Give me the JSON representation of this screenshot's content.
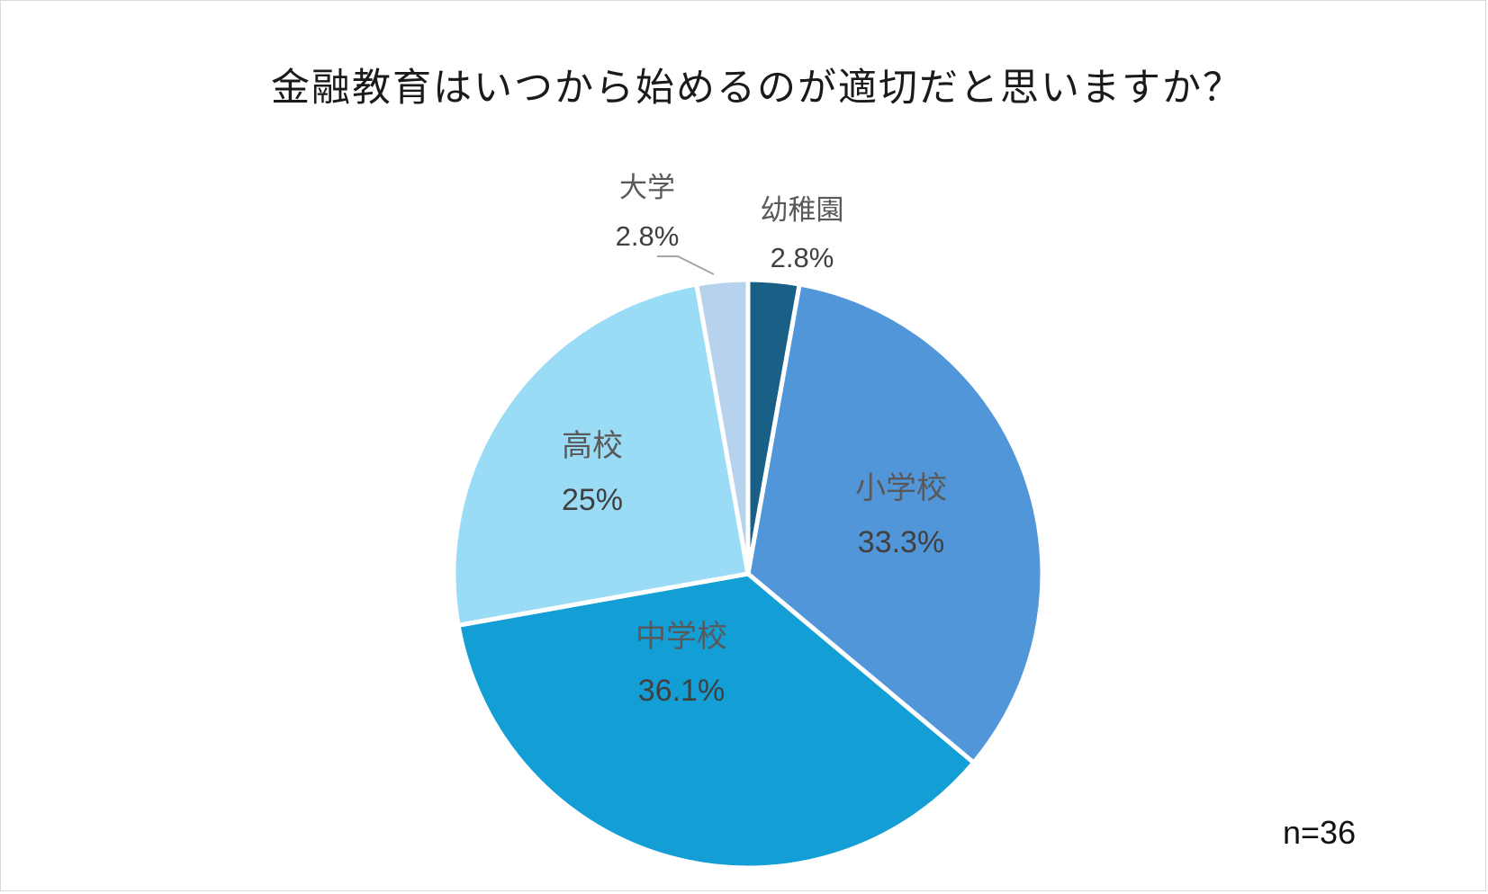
{
  "chart_data": {
    "type": "pie",
    "title": "金融教育はいつから始めるのが適切だと思いますか？",
    "note": "n=36",
    "slices": [
      {
        "label": "幼稚園",
        "value": 2.8,
        "value_label": "2.8%",
        "color": "#1a5f85"
      },
      {
        "label": "小学校",
        "value": 33.3,
        "value_label": "33.3%",
        "color": "#5296da"
      },
      {
        "label": "中学校",
        "value": 36.1,
        "value_label": "36.1%",
        "color": "#139ed6"
      },
      {
        "label": "高校",
        "value": 25,
        "value_label": "25%",
        "color": "#9adcf6"
      },
      {
        "label": "大学",
        "value": 2.8,
        "value_label": "2.8%",
        "color": "#b7d2ec"
      }
    ],
    "start_angle": "12 o'clock",
    "direction": "clockwise",
    "legend": "none",
    "labels": "category name and percentage"
  }
}
